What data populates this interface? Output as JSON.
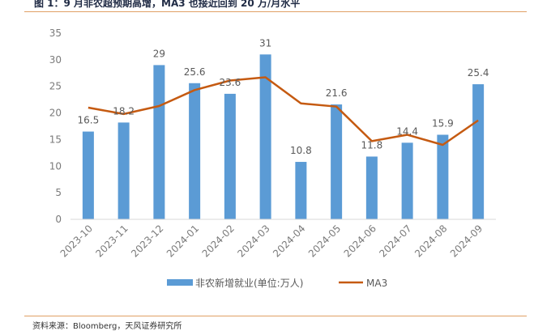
{
  "figure": {
    "title": "图 1：9 月非农超预期高增，MA3 也接近回到 20 万/月水平",
    "source": "资料来源：Bloomberg，天风证券研究所"
  },
  "colors": {
    "bar": "#5b9bd5",
    "line": "#c55a11",
    "axis": "#d9d9d9",
    "rule": "#e0a064"
  },
  "chart_data": {
    "type": "bar",
    "categories": [
      "2023-10",
      "2023-11",
      "2023-12",
      "2024-01",
      "2024-02",
      "2024-03",
      "2024-04",
      "2024-05",
      "2024-06",
      "2024-07",
      "2024-08",
      "2024-09"
    ],
    "ylim": [
      0,
      35
    ],
    "yticks": [
      0,
      5,
      10,
      15,
      20,
      25,
      30,
      35
    ],
    "series": [
      {
        "name": "非农新增就业(单位:万人)",
        "type": "bar",
        "values": [
          16.5,
          18.2,
          29,
          25.6,
          23.6,
          31,
          10.8,
          21.6,
          11.8,
          14.4,
          15.9,
          25.4
        ],
        "labels": [
          "16.5",
          "18.2",
          "29",
          "25.6",
          "23.6",
          "31",
          "10.8",
          "21.6",
          "11.8",
          "14.4",
          "15.9",
          "25.4"
        ]
      },
      {
        "name": "MA3",
        "type": "line",
        "values": [
          21.0,
          19.8,
          21.3,
          24.3,
          26.1,
          26.7,
          21.8,
          21.2,
          14.7,
          15.9,
          14.0,
          18.6
        ]
      }
    ],
    "legend_position": "bottom",
    "grid": false
  }
}
